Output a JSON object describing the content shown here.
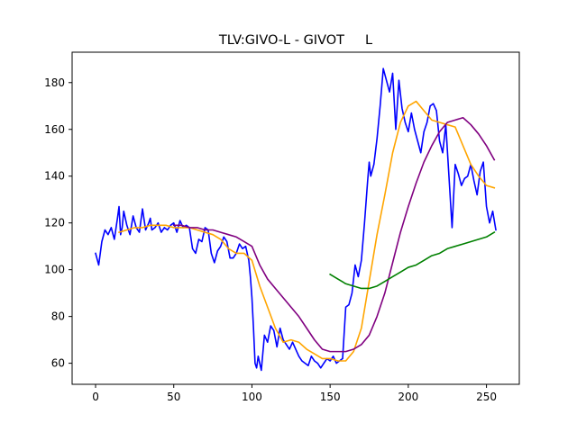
{
  "chart_data": {
    "type": "line",
    "title": "TLV:GIVO-L - GIVOT     L",
    "xlabel": "",
    "ylabel": "",
    "xlim": [
      -15,
      271
    ],
    "ylim": [
      51,
      193
    ],
    "xticks": [
      0,
      50,
      100,
      150,
      200,
      250
    ],
    "yticks": [
      60,
      80,
      100,
      120,
      140,
      160,
      180
    ],
    "grid": false,
    "legend": "none",
    "series": [
      {
        "color": "#0000ff",
        "x": [
          0,
          2,
          4,
          6,
          8,
          10,
          12,
          14,
          15,
          16,
          17,
          18,
          20,
          22,
          24,
          26,
          28,
          30,
          32,
          34,
          35,
          36,
          38,
          40,
          42,
          44,
          46,
          48,
          50,
          52,
          54,
          56,
          58,
          60,
          62,
          64,
          66,
          68,
          70,
          72,
          74,
          76,
          78,
          80,
          82,
          84,
          86,
          88,
          90,
          92,
          94,
          96,
          98,
          99,
          100,
          101,
          102,
          103,
          104,
          106,
          108,
          110,
          112,
          114,
          116,
          118,
          120,
          122,
          124,
          126,
          128,
          130,
          132,
          134,
          136,
          138,
          140,
          142,
          144,
          146,
          148,
          150,
          152,
          154,
          156,
          158,
          160,
          162,
          164,
          166,
          168,
          170,
          172,
          174,
          175,
          176,
          178,
          180,
          182,
          184,
          186,
          188,
          190,
          192,
          194,
          196,
          198,
          200,
          202,
          204,
          206,
          208,
          210,
          212,
          214,
          216,
          218,
          220,
          222,
          224,
          226,
          228,
          230,
          232,
          234,
          236,
          238,
          240,
          242,
          244,
          246,
          248,
          250,
          252,
          254,
          256
        ],
        "y": [
          107,
          102,
          112,
          117,
          115,
          118,
          113,
          122,
          127,
          115,
          118,
          125,
          119,
          115,
          123,
          118,
          116,
          126,
          117,
          120,
          122,
          117,
          118,
          120,
          116,
          118,
          117,
          119,
          120,
          116,
          121,
          118,
          119,
          118,
          109,
          107,
          113,
          112,
          118,
          117,
          107,
          103,
          108,
          110,
          114,
          112,
          105,
          105,
          107,
          111,
          109,
          110,
          104,
          97,
          88,
          75,
          60,
          58,
          63,
          57,
          72,
          69,
          76,
          74,
          67,
          75,
          70,
          68,
          66,
          69,
          66,
          63,
          61,
          60,
          59,
          63,
          61,
          60,
          58,
          60,
          62,
          61,
          63,
          60,
          61,
          62,
          84,
          85,
          90,
          102,
          97,
          104,
          120,
          138,
          146,
          140,
          145,
          156,
          170,
          186,
          181,
          176,
          184,
          160,
          181,
          169,
          163,
          159,
          167,
          160,
          155,
          150,
          159,
          163,
          170,
          171,
          168,
          155,
          150,
          162,
          140,
          118,
          145,
          141,
          136,
          139,
          140,
          145,
          138,
          132,
          142,
          146,
          127,
          120,
          125,
          117
        ]
      },
      {
        "color": "#ffa500",
        "x": [
          15,
          20,
          25,
          30,
          35,
          40,
          45,
          50,
          55,
          60,
          65,
          70,
          75,
          80,
          85,
          90,
          95,
          100,
          105,
          110,
          115,
          120,
          125,
          130,
          135,
          140,
          145,
          150,
          155,
          160,
          165,
          170,
          175,
          180,
          185,
          190,
          195,
          200,
          205,
          210,
          215,
          220,
          225,
          230,
          235,
          240,
          245,
          250,
          255
        ],
        "y": [
          116,
          117,
          118,
          118,
          119,
          119,
          119,
          118,
          118,
          118,
          117,
          116,
          115,
          113,
          109,
          107,
          107,
          104,
          93,
          84,
          75,
          69,
          70,
          69,
          66,
          64,
          62,
          62,
          61,
          61,
          65,
          75,
          95,
          115,
          132,
          150,
          163,
          170,
          172,
          168,
          164,
          163,
          162,
          161,
          153,
          145,
          140,
          136,
          135
        ]
      },
      {
        "color": "#800080",
        "x": [
          50,
          55,
          60,
          65,
          70,
          75,
          80,
          85,
          90,
          95,
          100,
          105,
          110,
          115,
          120,
          125,
          130,
          135,
          140,
          145,
          150,
          155,
          160,
          165,
          170,
          175,
          180,
          185,
          190,
          195,
          200,
          205,
          210,
          215,
          220,
          225,
          230,
          235,
          240,
          245,
          250,
          255
        ],
        "y": [
          119,
          119,
          118,
          118,
          117,
          117,
          116,
          115,
          114,
          112,
          110,
          102,
          96,
          92,
          88,
          84,
          80,
          75,
          70,
          66,
          65,
          65,
          65,
          66,
          68,
          72,
          80,
          90,
          103,
          116,
          127,
          137,
          146,
          153,
          159,
          163,
          164,
          165,
          162,
          158,
          153,
          147
        ]
      },
      {
        "color": "#008000",
        "x": [
          150,
          155,
          160,
          165,
          170,
          175,
          180,
          185,
          190,
          195,
          200,
          205,
          210,
          215,
          220,
          225,
          230,
          235,
          240,
          245,
          250,
          255
        ],
        "y": [
          98,
          96,
          94,
          93,
          92,
          92,
          93,
          95,
          97,
          99,
          101,
          102,
          104,
          106,
          107,
          109,
          110,
          111,
          112,
          113,
          114,
          116
        ]
      }
    ]
  }
}
